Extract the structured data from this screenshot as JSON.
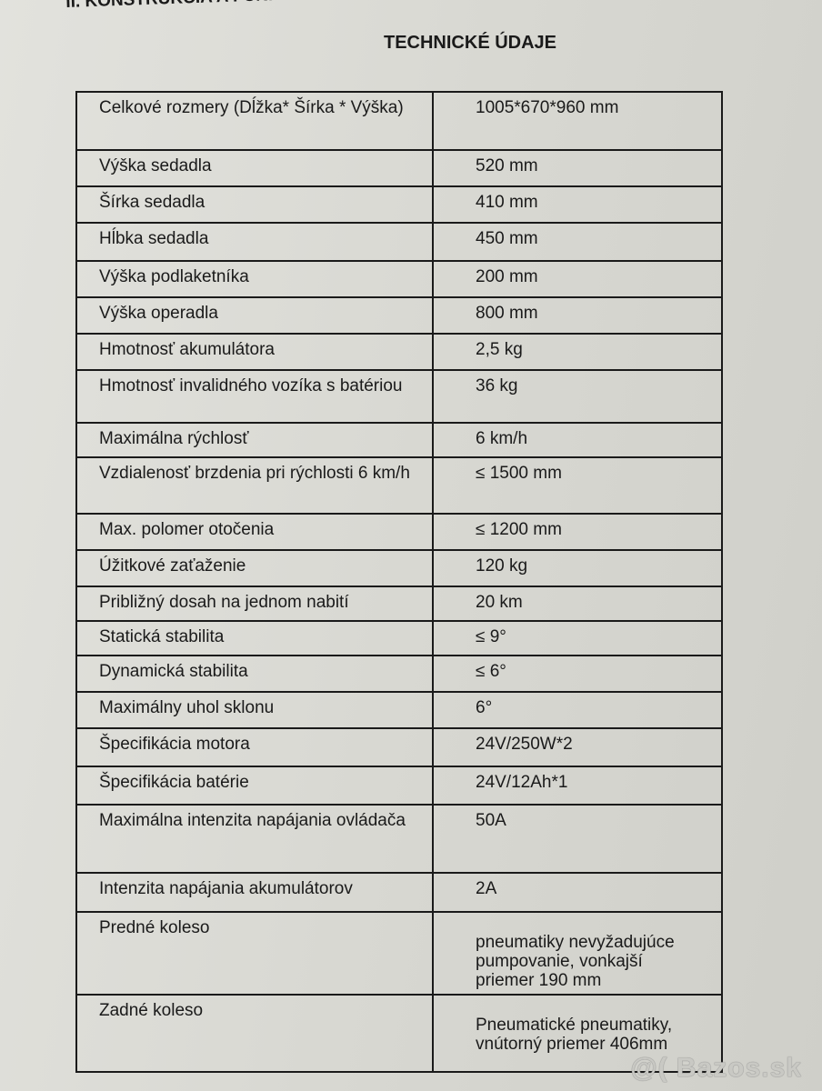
{
  "section_heading": "II. KONŠTRUKCIA A FUNKC",
  "title": "TECHNICKÉ ÚDAJE",
  "rows": [
    {
      "k": "Celkové rozmery (Dĺžka* Šírka * Výška)",
      "v": "1005*670*960 mm"
    },
    {
      "k": "Výška sedadla",
      "v": "520 mm"
    },
    {
      "k": "Šírka sedadla",
      "v": "410 mm"
    },
    {
      "k": "Hĺbka sedadla",
      "v": "450 mm"
    },
    {
      "k": "Výška podlaketníka",
      "v": "200 mm"
    },
    {
      "k": "Výška operadla",
      "v": "800 mm"
    },
    {
      "k": "Hmotnosť akumulátora",
      "v": "2,5 kg"
    },
    {
      "k": "Hmotnosť invalidného vozíka s batériou",
      "v": "36 kg"
    },
    {
      "k": "Maximálna rýchlosť",
      "v": "6 km/h"
    },
    {
      "k": "Vzdialenosť brzdenia pri rýchlosti 6 km/h",
      "v": "≤ 1500 mm"
    },
    {
      "k": "Max. polomer otočenia",
      "v": "≤ 1200 mm"
    },
    {
      "k": "Úžitkové zaťaženie",
      "v": "120 kg"
    },
    {
      "k": "Približný dosah na jednom nabití",
      "v": "20 km"
    },
    {
      "k": "Statická stabilita",
      "v": "≤ 9°"
    },
    {
      "k": "Dynamická stabilita",
      "v": "≤ 6°"
    },
    {
      "k": "Maximálny uhol sklonu",
      "v": "6°"
    },
    {
      "k": "Špecifikácia motora",
      "v": "24V/250W*2"
    },
    {
      "k": "Špecifikácia batérie",
      "v": "24V/12Ah*1"
    },
    {
      "k": "Maximálna intenzita napájania ovládača",
      "v": "50A"
    },
    {
      "k": "Intenzita napájania akumulátorov",
      "v": "2A"
    },
    {
      "k": "Predné koleso",
      "v": "pneumatiky nevyžadujúce pumpovanie, vonkajší priemer 190 mm"
    },
    {
      "k": "Zadné koleso",
      "v": "Pneumatické pneumatiky, vnútorný priemer 406mm"
    }
  ],
  "watermark": "@( Bazos.sk"
}
